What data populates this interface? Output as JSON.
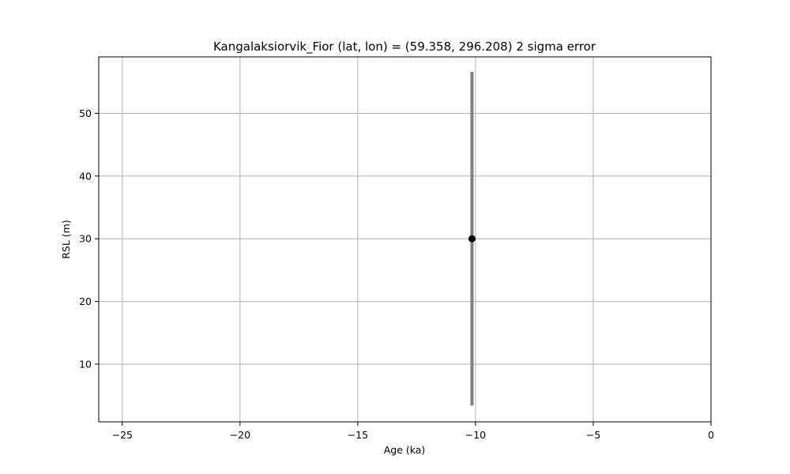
{
  "chart_data": {
    "type": "scatter",
    "title": "Kangalaksiorvik_Fior (lat, lon) = (59.358, 296.208)  2 sigma error",
    "xlabel": "Age (ka)",
    "ylabel": "RSL (m)",
    "xlim": [
      -26,
      0
    ],
    "ylim": [
      0.8,
      59
    ],
    "xticks": [
      -25,
      -20,
      -15,
      -10,
      -5,
      0
    ],
    "yticks": [
      10,
      20,
      30,
      40,
      50
    ],
    "grid": true,
    "points": [
      {
        "x": -10.15,
        "y": 30.0,
        "yerr_low": 3.4,
        "yerr_high": 56.6
      }
    ],
    "colors": {
      "point": "#000000",
      "errorbar": "#808080",
      "grid": "#b0b0b0",
      "axes": "#000000"
    }
  }
}
